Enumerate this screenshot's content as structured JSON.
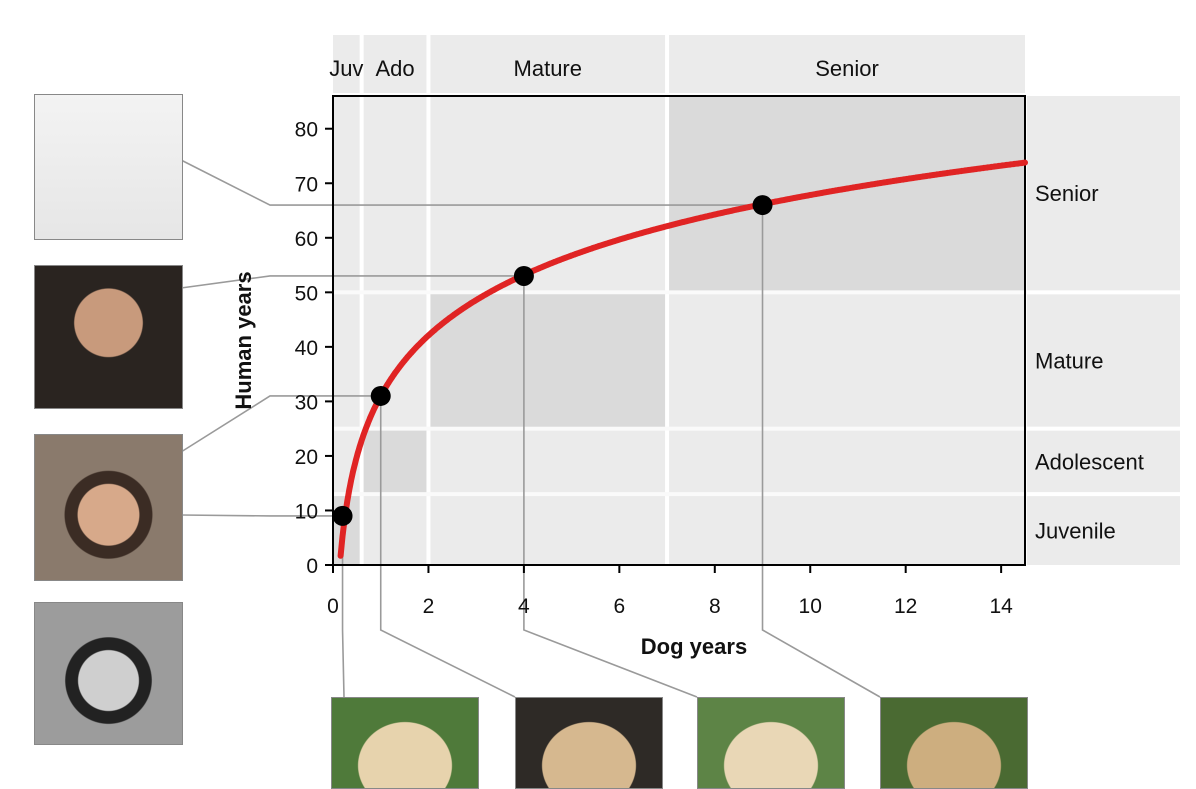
{
  "chart_data": {
    "type": "line",
    "title": "",
    "xlabel": "Dog years",
    "ylabel": "Human years",
    "xlim": [
      0,
      14.5
    ],
    "ylim": [
      0,
      86
    ],
    "x_ticks": [
      0,
      2,
      4,
      6,
      8,
      10,
      12,
      14
    ],
    "y_ticks": [
      0,
      10,
      20,
      30,
      40,
      50,
      60,
      70,
      80
    ],
    "grid": false,
    "line_color": "#e02424",
    "highlighted_points": [
      {
        "x": 0.2,
        "y": 9
      },
      {
        "x": 1,
        "y": 31
      },
      {
        "x": 4,
        "y": 53
      },
      {
        "x": 9,
        "y": 66
      }
    ],
    "dog_stages": [
      {
        "label": "Juv",
        "x_start": 0,
        "x_end": 0.6
      },
      {
        "label": "Ado",
        "x_start": 0.6,
        "x_end": 2
      },
      {
        "label": "Mature",
        "x_start": 2,
        "x_end": 7
      },
      {
        "label": "Senior",
        "x_start": 7,
        "x_end": 14.5
      }
    ],
    "human_stages": [
      {
        "label": "Juvenile",
        "y_start": 0,
        "y_end": 13
      },
      {
        "label": "Adolescent",
        "y_start": 13,
        "y_end": 25
      },
      {
        "label": "Mature",
        "y_start": 25,
        "y_end": 50
      },
      {
        "label": "Senior",
        "y_start": 50,
        "y_end": 86
      }
    ],
    "colors": {
      "band": "#ebebeb",
      "overlap": "#dadada",
      "point": "#000000",
      "connector": "#9a9a9a"
    }
  },
  "photos": {
    "humans": [
      "tom-hanks-senior",
      "tom-hanks-mature",
      "tom-hanks-adolescent",
      "tom-hanks-juvenile"
    ],
    "dogs": [
      "labrador-puppy",
      "labrador-young",
      "labrador-adult",
      "labrador-senior"
    ]
  }
}
